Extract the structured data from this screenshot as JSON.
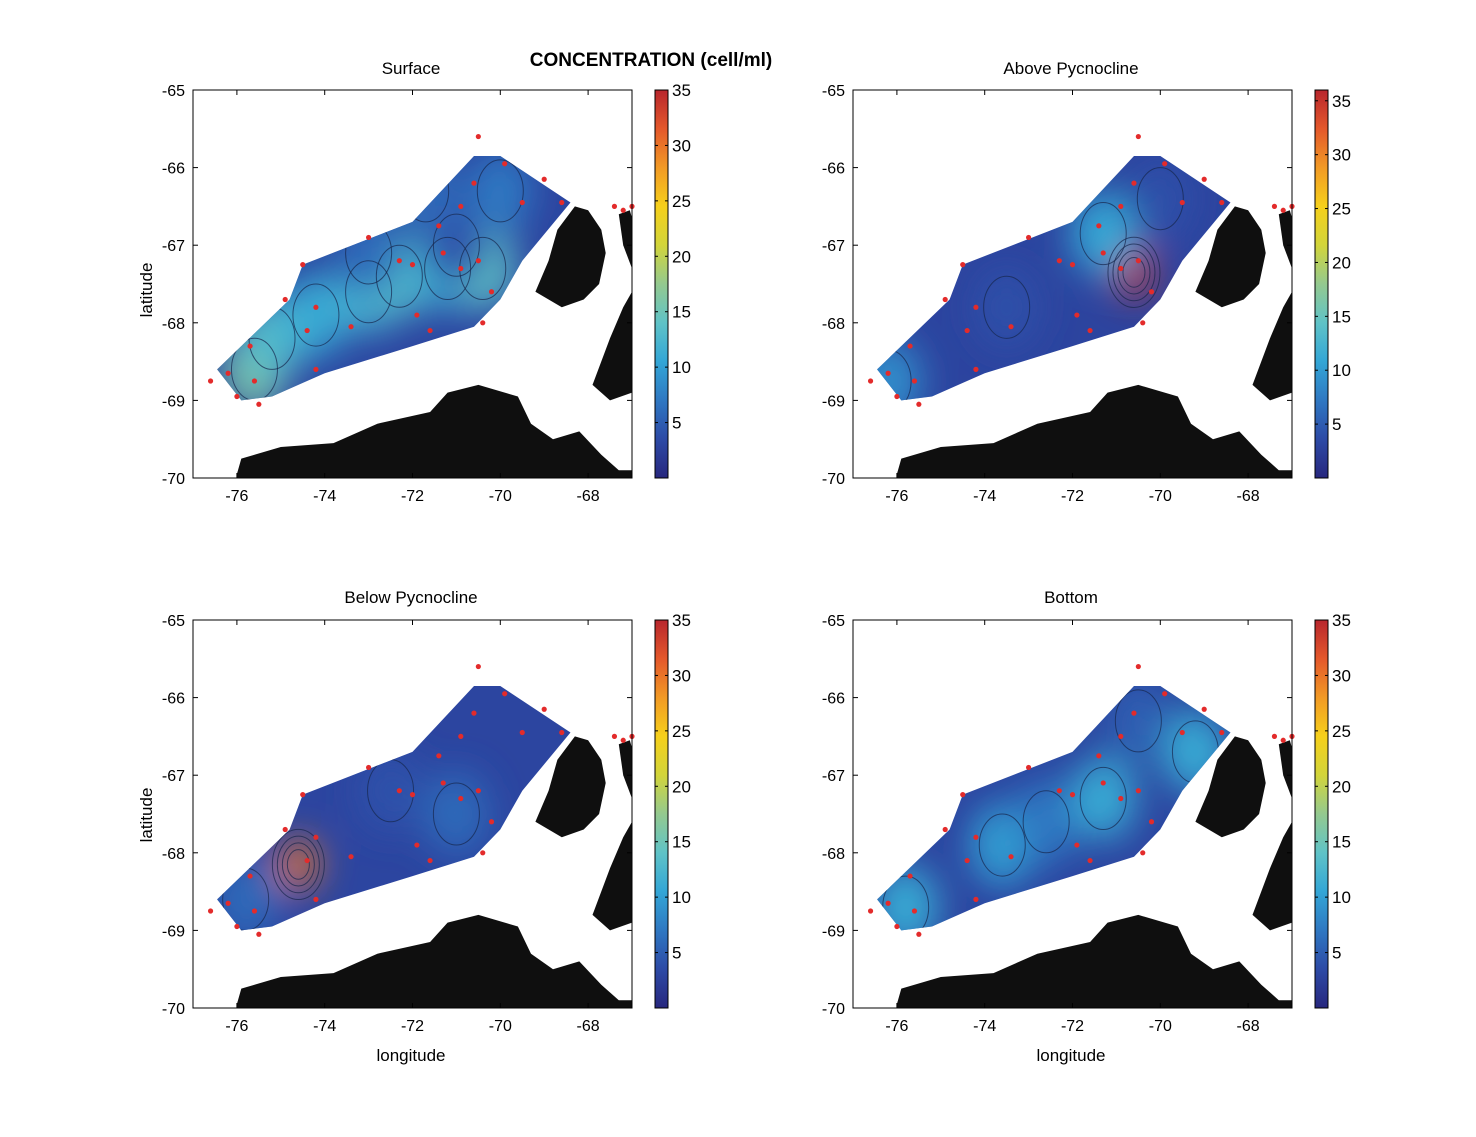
{
  "figure_title": "CONCENTRATION (cell/ml)",
  "colors": {
    "land": "#0f0f0f",
    "station": "#e32b2b",
    "contour": "#17274d",
    "colormap": [
      "#27277e",
      "#2d4aa6",
      "#2f78c2",
      "#33a6d6",
      "#5fc3c7",
      "#94c98f",
      "#d2d53a",
      "#f6d01b",
      "#f29a25",
      "#e4582b",
      "#b8262d"
    ]
  },
  "chart_data": [
    {
      "type": "heatmap",
      "title": "Surface",
      "xlabel": "",
      "ylabel": "latitude",
      "xlim": [
        -77,
        -67
      ],
      "ylim": [
        -70,
        -65
      ],
      "xticks": [
        -76,
        -74,
        -72,
        -70,
        -68
      ],
      "yticks": [
        -65,
        -66,
        -67,
        -68,
        -69,
        -70
      ],
      "colorbar_ticks": [
        5,
        10,
        15,
        20,
        25,
        30,
        35
      ],
      "colorbar_range": [
        0,
        35
      ],
      "field": [
        {
          "lon": -75.6,
          "lat": -68.6,
          "value": 16
        },
        {
          "lon": -75.2,
          "lat": -68.2,
          "value": 13
        },
        {
          "lon": -74.2,
          "lat": -67.9,
          "value": 11
        },
        {
          "lon": -73.0,
          "lat": -67.6,
          "value": 12
        },
        {
          "lon": -72.3,
          "lat": -67.4,
          "value": 13
        },
        {
          "lon": -71.2,
          "lat": -67.3,
          "value": 11
        },
        {
          "lon": -70.4,
          "lat": -67.3,
          "value": 14
        },
        {
          "lon": -71.0,
          "lat": -67.0,
          "value": 4
        },
        {
          "lon": -73.0,
          "lat": -67.1,
          "value": 6
        },
        {
          "lon": -70.0,
          "lat": -66.3,
          "value": 7
        },
        {
          "lon": -71.7,
          "lat": -66.3,
          "value": 6
        }
      ],
      "stations": [
        [
          -76.6,
          -68.75
        ],
        [
          -76.2,
          -68.65
        ],
        [
          -75.7,
          -68.3
        ],
        [
          -75.6,
          -68.75
        ],
        [
          -75.5,
          -69.05
        ],
        [
          -76.0,
          -68.95
        ],
        [
          -74.9,
          -67.7
        ],
        [
          -74.5,
          -67.25
        ],
        [
          -74.2,
          -67.8
        ],
        [
          -74.4,
          -68.1
        ],
        [
          -74.2,
          -68.6
        ],
        [
          -73.4,
          -68.05
        ],
        [
          -72.3,
          -67.2
        ],
        [
          -71.9,
          -67.9
        ],
        [
          -71.6,
          -68.1
        ],
        [
          -71.4,
          -66.75
        ],
        [
          -71.3,
          -67.1
        ],
        [
          -70.9,
          -66.5
        ],
        [
          -70.6,
          -66.2
        ],
        [
          -69.5,
          -66.45
        ],
        [
          -70.5,
          -67.2
        ],
        [
          -70.9,
          -67.3
        ],
        [
          -70.2,
          -67.6
        ],
        [
          -70.4,
          -68.0
        ],
        [
          -70.5,
          -65.6
        ],
        [
          -69.9,
          -65.95
        ],
        [
          -69.0,
          -66.15
        ],
        [
          -68.6,
          -66.45
        ],
        [
          -72.0,
          -67.25
        ],
        [
          -73.0,
          -66.9
        ],
        [
          -67.4,
          -66.5
        ],
        [
          -67.2,
          -66.55
        ],
        [
          -67.0,
          -66.5
        ]
      ]
    },
    {
      "type": "heatmap",
      "title": "Above Pycnocline",
      "xlabel": "",
      "ylabel": "",
      "xlim": [
        -77,
        -67
      ],
      "ylim": [
        -70,
        -65
      ],
      "xticks": [
        -76,
        -74,
        -72,
        -70,
        -68
      ],
      "yticks": [
        -65,
        -66,
        -67,
        -68,
        -69,
        -70
      ],
      "colorbar_ticks": [
        5,
        10,
        15,
        20,
        25,
        30,
        35
      ],
      "colorbar_range": [
        0,
        36
      ],
      "field": [
        {
          "lon": -70.6,
          "lat": -67.35,
          "value": 35
        },
        {
          "lon": -71.3,
          "lat": -66.85,
          "value": 11
        },
        {
          "lon": -76.2,
          "lat": -68.75,
          "value": 9
        },
        {
          "lon": -73.5,
          "lat": -67.8,
          "value": 4
        },
        {
          "lon": -70.0,
          "lat": -66.4,
          "value": 4
        }
      ],
      "stations": [
        [
          -76.6,
          -68.75
        ],
        [
          -76.2,
          -68.65
        ],
        [
          -75.7,
          -68.3
        ],
        [
          -75.6,
          -68.75
        ],
        [
          -75.5,
          -69.05
        ],
        [
          -76.0,
          -68.95
        ],
        [
          -74.9,
          -67.7
        ],
        [
          -74.5,
          -67.25
        ],
        [
          -74.2,
          -67.8
        ],
        [
          -74.4,
          -68.1
        ],
        [
          -74.2,
          -68.6
        ],
        [
          -73.4,
          -68.05
        ],
        [
          -72.3,
          -67.2
        ],
        [
          -71.9,
          -67.9
        ],
        [
          -71.6,
          -68.1
        ],
        [
          -71.4,
          -66.75
        ],
        [
          -71.3,
          -67.1
        ],
        [
          -70.9,
          -66.5
        ],
        [
          -70.6,
          -66.2
        ],
        [
          -69.5,
          -66.45
        ],
        [
          -70.5,
          -67.2
        ],
        [
          -70.9,
          -67.3
        ],
        [
          -70.2,
          -67.6
        ],
        [
          -70.4,
          -68.0
        ],
        [
          -70.5,
          -65.6
        ],
        [
          -69.9,
          -65.95
        ],
        [
          -69.0,
          -66.15
        ],
        [
          -68.6,
          -66.45
        ],
        [
          -72.0,
          -67.25
        ],
        [
          -73.0,
          -66.9
        ],
        [
          -67.4,
          -66.5
        ],
        [
          -67.2,
          -66.55
        ],
        [
          -67.0,
          -66.5
        ]
      ]
    },
    {
      "type": "heatmap",
      "title": "Below Pycnocline",
      "xlabel": "longitude",
      "ylabel": "latitude",
      "xlim": [
        -77,
        -67
      ],
      "ylim": [
        -70,
        -65
      ],
      "xticks": [
        -76,
        -74,
        -72,
        -70,
        -68
      ],
      "yticks": [
        -65,
        -66,
        -67,
        -68,
        -69,
        -70
      ],
      "colorbar_ticks": [
        5,
        10,
        15,
        20,
        25,
        30,
        35
      ],
      "colorbar_range": [
        0,
        35
      ],
      "field": [
        {
          "lon": -74.6,
          "lat": -68.15,
          "value": 30
        },
        {
          "lon": -75.8,
          "lat": -68.6,
          "value": 6
        },
        {
          "lon": -71.0,
          "lat": -67.5,
          "value": 6
        },
        {
          "lon": -72.5,
          "lat": -67.2,
          "value": 4
        }
      ],
      "stations": [
        [
          -76.6,
          -68.75
        ],
        [
          -76.2,
          -68.65
        ],
        [
          -75.7,
          -68.3
        ],
        [
          -75.6,
          -68.75
        ],
        [
          -75.5,
          -69.05
        ],
        [
          -76.0,
          -68.95
        ],
        [
          -74.9,
          -67.7
        ],
        [
          -74.5,
          -67.25
        ],
        [
          -74.2,
          -67.8
        ],
        [
          -74.4,
          -68.1
        ],
        [
          -74.2,
          -68.6
        ],
        [
          -73.4,
          -68.05
        ],
        [
          -72.3,
          -67.2
        ],
        [
          -71.9,
          -67.9
        ],
        [
          -71.6,
          -68.1
        ],
        [
          -71.4,
          -66.75
        ],
        [
          -71.3,
          -67.1
        ],
        [
          -70.9,
          -66.5
        ],
        [
          -70.6,
          -66.2
        ],
        [
          -69.5,
          -66.45
        ],
        [
          -70.5,
          -67.2
        ],
        [
          -70.9,
          -67.3
        ],
        [
          -70.2,
          -67.6
        ],
        [
          -70.4,
          -68.0
        ],
        [
          -70.5,
          -65.6
        ],
        [
          -69.9,
          -65.95
        ],
        [
          -69.0,
          -66.15
        ],
        [
          -68.6,
          -66.45
        ],
        [
          -72.0,
          -67.25
        ],
        [
          -73.0,
          -66.9
        ],
        [
          -67.4,
          -66.5
        ],
        [
          -67.2,
          -66.55
        ],
        [
          -67.0,
          -66.5
        ]
      ]
    },
    {
      "type": "heatmap",
      "title": "Bottom",
      "xlabel": "longitude",
      "ylabel": "",
      "xlim": [
        -77,
        -67
      ],
      "ylim": [
        -70,
        -65
      ],
      "xticks": [
        -76,
        -74,
        -72,
        -70,
        -68
      ],
      "yticks": [
        -65,
        -66,
        -67,
        -68,
        -69,
        -70
      ],
      "colorbar_ticks": [
        5,
        10,
        15,
        20,
        25,
        30,
        35
      ],
      "colorbar_range": [
        0,
        35
      ],
      "field": [
        {
          "lon": -75.8,
          "lat": -68.7,
          "value": 11
        },
        {
          "lon": -73.6,
          "lat": -67.9,
          "value": 10
        },
        {
          "lon": -71.3,
          "lat": -67.3,
          "value": 11
        },
        {
          "lon": -69.2,
          "lat": -66.7,
          "value": 11
        },
        {
          "lon": -72.6,
          "lat": -67.6,
          "value": 7
        },
        {
          "lon": -70.5,
          "lat": -66.3,
          "value": 5
        }
      ],
      "stations": [
        [
          -76.6,
          -68.75
        ],
        [
          -76.2,
          -68.65
        ],
        [
          -75.7,
          -68.3
        ],
        [
          -75.6,
          -68.75
        ],
        [
          -75.5,
          -69.05
        ],
        [
          -76.0,
          -68.95
        ],
        [
          -74.9,
          -67.7
        ],
        [
          -74.5,
          -67.25
        ],
        [
          -74.2,
          -67.8
        ],
        [
          -74.4,
          -68.1
        ],
        [
          -74.2,
          -68.6
        ],
        [
          -73.4,
          -68.05
        ],
        [
          -72.3,
          -67.2
        ],
        [
          -71.9,
          -67.9
        ],
        [
          -71.6,
          -68.1
        ],
        [
          -71.4,
          -66.75
        ],
        [
          -71.3,
          -67.1
        ],
        [
          -70.9,
          -66.5
        ],
        [
          -70.6,
          -66.2
        ],
        [
          -69.5,
          -66.45
        ],
        [
          -70.5,
          -67.2
        ],
        [
          -70.9,
          -67.3
        ],
        [
          -70.2,
          -67.6
        ],
        [
          -70.4,
          -68.0
        ],
        [
          -70.5,
          -65.6
        ],
        [
          -69.9,
          -65.95
        ],
        [
          -69.0,
          -66.15
        ],
        [
          -68.6,
          -66.45
        ],
        [
          -72.0,
          -67.25
        ],
        [
          -73.0,
          -66.9
        ],
        [
          -67.4,
          -66.5
        ],
        [
          -67.2,
          -66.55
        ],
        [
          -67.0,
          -66.5
        ]
      ]
    }
  ]
}
